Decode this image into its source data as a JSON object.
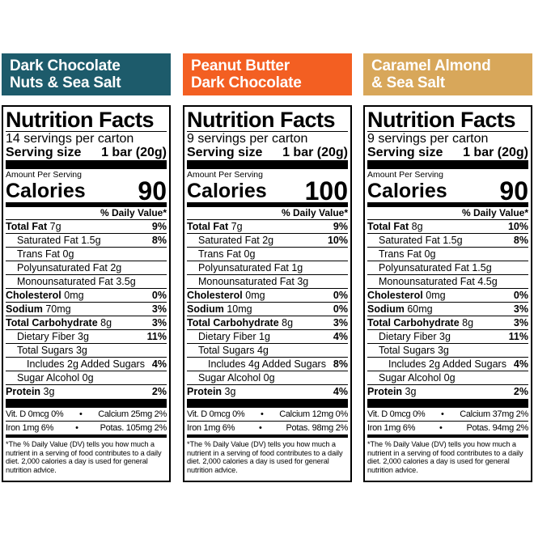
{
  "products": [
    {
      "name_line1": "Dark Chocolate",
      "name_line2": "Nuts & Sea Salt",
      "color": "#1d5b6b",
      "servings": "14 servings per carton",
      "calories": "90",
      "rows": [
        {
          "label": "Total Fat",
          "amount": "7g",
          "dv": "9%",
          "bold": true,
          "indent": 0
        },
        {
          "label": "Saturated Fat",
          "amount": "1.5g",
          "dv": "8%",
          "bold": false,
          "indent": 1
        },
        {
          "label": "Trans Fat",
          "amount": "0g",
          "dv": "",
          "bold": false,
          "indent": 1
        },
        {
          "label": "Polyunsaturated Fat",
          "amount": "2g",
          "dv": "",
          "bold": false,
          "indent": 1
        },
        {
          "label": "Monounsaturated Fat",
          "amount": "3.5g",
          "dv": "",
          "bold": false,
          "indent": 1
        },
        {
          "label": "Cholesterol",
          "amount": "0mg",
          "dv": "0%",
          "bold": true,
          "indent": 0
        },
        {
          "label": "Sodium",
          "amount": "70mg",
          "dv": "3%",
          "bold": true,
          "indent": 0
        },
        {
          "label": "Total Carbohydrate",
          "amount": "8g",
          "dv": "3%",
          "bold": true,
          "indent": 0
        },
        {
          "label": "Dietary Fiber",
          "amount": "3g",
          "dv": "11%",
          "bold": false,
          "indent": 1
        },
        {
          "label": "Total Sugars",
          "amount": "3g",
          "dv": "",
          "bold": false,
          "indent": 1
        },
        {
          "label": "Includes 2g Added Sugars",
          "amount": "",
          "dv": "4%",
          "bold": false,
          "indent": 2
        },
        {
          "label": "Sugar Alcohol",
          "amount": "0g",
          "dv": "",
          "bold": false,
          "indent": 1
        },
        {
          "label": "Protein",
          "amount": "3g",
          "dv": "2%",
          "bold": true,
          "indent": 0
        }
      ],
      "vit_d": "Vit. D 0mcg 0%",
      "calcium": "Calcium 25mg 2%",
      "iron": "Iron 1mg 6%",
      "potassium": "Potas. 105mg 2%"
    },
    {
      "name_line1": "Peanut Butter",
      "name_line2": "Dark Chocolate",
      "color": "#f35f22",
      "servings": "9 servings per carton",
      "calories": "100",
      "rows": [
        {
          "label": "Total Fat",
          "amount": "7g",
          "dv": "9%",
          "bold": true,
          "indent": 0
        },
        {
          "label": "Saturated Fat",
          "amount": "2g",
          "dv": "10%",
          "bold": false,
          "indent": 1
        },
        {
          "label": "Trans Fat",
          "amount": "0g",
          "dv": "",
          "bold": false,
          "indent": 1
        },
        {
          "label": "Polyunsaturated Fat",
          "amount": "1g",
          "dv": "",
          "bold": false,
          "indent": 1
        },
        {
          "label": "Monounsaturated Fat",
          "amount": "3g",
          "dv": "",
          "bold": false,
          "indent": 1
        },
        {
          "label": "Cholesterol",
          "amount": "0mg",
          "dv": "0%",
          "bold": true,
          "indent": 0
        },
        {
          "label": "Sodium",
          "amount": "10mg",
          "dv": "0%",
          "bold": true,
          "indent": 0
        },
        {
          "label": "Total Carbohydrate",
          "amount": "8g",
          "dv": "3%",
          "bold": true,
          "indent": 0
        },
        {
          "label": "Dietary Fiber",
          "amount": "1g",
          "dv": "4%",
          "bold": false,
          "indent": 1
        },
        {
          "label": "Total Sugars",
          "amount": "4g",
          "dv": "",
          "bold": false,
          "indent": 1
        },
        {
          "label": "Includes 4g Added Sugars",
          "amount": "",
          "dv": "8%",
          "bold": false,
          "indent": 2
        },
        {
          "label": "Sugar Alcohol",
          "amount": "0g",
          "dv": "",
          "bold": false,
          "indent": 1
        },
        {
          "label": "Protein",
          "amount": "3g",
          "dv": "4%",
          "bold": true,
          "indent": 0
        }
      ],
      "vit_d": "Vit. D 0mcg 0%",
      "calcium": "Calcium 12mg 0%",
      "iron": "Iron 1mg 6%",
      "potassium": "Potas. 98mg 2%"
    },
    {
      "name_line1": "Caramel Almond",
      "name_line2": "& Sea Salt",
      "color": "#d8a75a",
      "servings": "9 servings per carton",
      "calories": "90",
      "rows": [
        {
          "label": "Total Fat",
          "amount": "8g",
          "dv": "10%",
          "bold": true,
          "indent": 0
        },
        {
          "label": "Saturated Fat",
          "amount": "1.5g",
          "dv": "8%",
          "bold": false,
          "indent": 1
        },
        {
          "label": "Trans Fat",
          "amount": "0g",
          "dv": "",
          "bold": false,
          "indent": 1
        },
        {
          "label": "Polyunsaturated Fat",
          "amount": "1.5g",
          "dv": "",
          "bold": false,
          "indent": 1
        },
        {
          "label": "Monounsaturated Fat",
          "amount": "4.5g",
          "dv": "",
          "bold": false,
          "indent": 1
        },
        {
          "label": "Cholesterol",
          "amount": "0mg",
          "dv": "0%",
          "bold": true,
          "indent": 0
        },
        {
          "label": "Sodium",
          "amount": "60mg",
          "dv": "3%",
          "bold": true,
          "indent": 0
        },
        {
          "label": "Total Carbohydrate",
          "amount": "8g",
          "dv": "3%",
          "bold": true,
          "indent": 0
        },
        {
          "label": "Dietary Fiber",
          "amount": "3g",
          "dv": "11%",
          "bold": false,
          "indent": 1
        },
        {
          "label": "Total Sugars",
          "amount": "3g",
          "dv": "",
          "bold": false,
          "indent": 1
        },
        {
          "label": "Includes 2g Added Sugars",
          "amount": "",
          "dv": "4%",
          "bold": false,
          "indent": 2
        },
        {
          "label": "Sugar Alcohol",
          "amount": "0g",
          "dv": "",
          "bold": false,
          "indent": 1
        },
        {
          "label": "Protein",
          "amount": "3g",
          "dv": "2%",
          "bold": true,
          "indent": 0
        }
      ],
      "vit_d": "Vit. D 0mcg 0%",
      "calcium": "Calcium 37mg 2%",
      "iron": "Iron 1mg 6%",
      "potassium": "Potas. 94mg 2%"
    }
  ],
  "common": {
    "title": "Nutrition Facts",
    "serving_size_label": "Serving size",
    "serving_size_value": "1 bar (20g)",
    "amount_per_serving": "Amount Per Serving",
    "calories_label": "Calories",
    "daily_value_header": "% Daily Value*",
    "bullet": "•",
    "footnote": "*The % Daily Value (DV) tells you how much a nutrient in a serving of food contributes to a daily diet. 2,000 calories a day is used for general nutrition advice."
  }
}
